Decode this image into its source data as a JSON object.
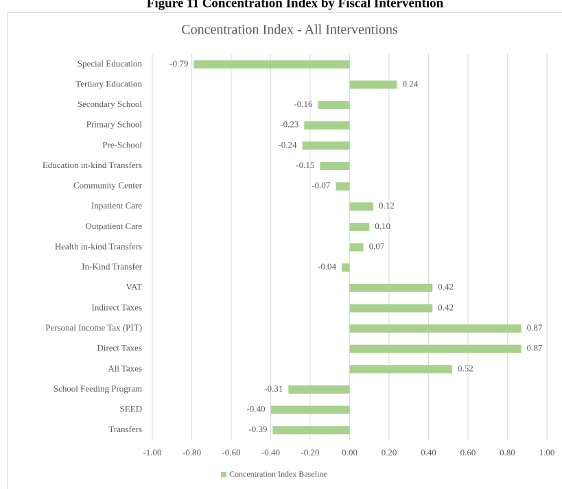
{
  "figure_title": "Figure 11 Concentration Index by Fiscal Intervention",
  "chart_data": {
    "type": "hbar",
    "title": "Concentration Index - All Interventions",
    "categories": [
      "Special Education",
      "Tertiary Education",
      "Secondary School",
      "Primary School",
      "Pre-School",
      "Education in-kind Transfers",
      "Community Center",
      "Inpatient Care",
      "Outpatient Care",
      "Health in-kind Transfers",
      "In-Kind Transfer",
      "VAT",
      "Indirect Taxes",
      "Personal Income Tax (PIT)",
      "Direct Taxes",
      "All Taxes",
      "School Feeding Program",
      "SEED",
      "Transfers"
    ],
    "series": [
      {
        "name": "Concentration Index Baseline",
        "color": "#a9d18e",
        "values": [
          -0.79,
          0.24,
          -0.16,
          -0.23,
          -0.24,
          -0.15,
          -0.07,
          0.12,
          0.1,
          0.07,
          -0.04,
          0.42,
          0.42,
          0.87,
          0.87,
          0.52,
          -0.31,
          -0.4,
          -0.39
        ],
        "value_labels": [
          "-0.79",
          "0.24",
          "-0.16",
          "-0.23",
          "-0.24",
          "-0.15",
          "-0.07",
          "0.12",
          "0.10",
          "0.07",
          "-0.04",
          "0.42",
          "0.42",
          "0.87",
          "0.87",
          "0.52",
          "-0.31",
          "-0.40",
          "-0.39"
        ]
      }
    ],
    "xlim": [
      -1,
      1
    ],
    "xticks": [
      {
        "value": -1,
        "label": "-1.00"
      },
      {
        "value": -0.8,
        "label": "-0.80"
      },
      {
        "value": -0.6,
        "label": "-0.60"
      },
      {
        "value": -0.4,
        "label": "-0.40"
      },
      {
        "value": -0.2,
        "label": "-0.20"
      },
      {
        "value": 0,
        "label": "0.00"
      },
      {
        "value": 0.2,
        "label": "0.20"
      },
      {
        "value": 0.4,
        "label": "0.40"
      },
      {
        "value": 0.6,
        "label": "0.60"
      },
      {
        "value": 0.8,
        "label": "0.80"
      },
      {
        "value": 1,
        "label": "1.00"
      }
    ],
    "grid": true,
    "legend": "bottom"
  }
}
